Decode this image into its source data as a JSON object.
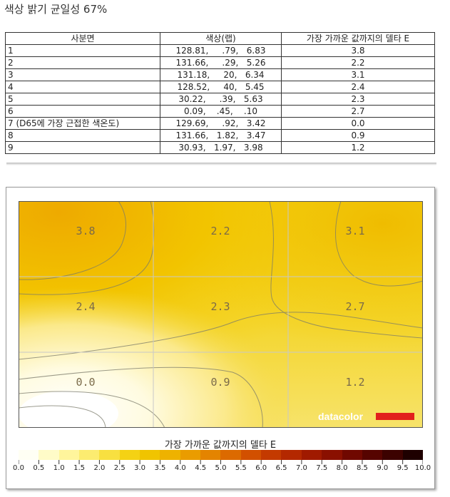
{
  "page_title": "색상 밝기 균일성 67%",
  "table": {
    "headers": [
      "사분면",
      "색상(랩)",
      "가장 가까운 값까지의 델타 E"
    ],
    "rows": [
      {
        "quadrant": "1",
        "lab": "128.81,     .79,   6.83",
        "delta": "3.8"
      },
      {
        "quadrant": "2",
        "lab": "131.66,     .29,   5.26",
        "delta": "2.2"
      },
      {
        "quadrant": "3",
        "lab": "131.18,     20,   6.34",
        "delta": "3.1"
      },
      {
        "quadrant": "4",
        "lab": "128.52,     40,   5.45",
        "delta": "2.4"
      },
      {
        "quadrant": "5",
        "lab": "30.22,     .39,   5.63",
        "delta": "2.3"
      },
      {
        "quadrant": "6",
        "lab": "0.09,    .45,    .10",
        "delta": "2.7"
      },
      {
        "quadrant": "7 (D65에 가장 근접한 색온도)",
        "lab": "129.69,     .92,   3.42",
        "delta": "0.0"
      },
      {
        "quadrant": "8",
        "lab": "131.66,   1.82,   3.47",
        "delta": "0.9"
      },
      {
        "quadrant": "9",
        "lab": "30.93,   1.97,   3.98",
        "delta": "1.2"
      }
    ]
  },
  "heatmap": {
    "cells": [
      "3.8",
      "2.2",
      "3.1",
      "2.4",
      "2.3",
      "2.7",
      "0.0",
      "0.9",
      "1.2"
    ],
    "watermark": "datacolor",
    "legend_title": "가장 가까운 값까지의 델타 E",
    "legend_ticks": [
      "0.0",
      "0.5",
      "1.0",
      "1.5",
      "2.0",
      "2.5",
      "3.0",
      "3.5",
      "4.0",
      "4.5",
      "5.0",
      "5.5",
      "6.0",
      "6.5",
      "7.0",
      "7.5",
      "8.0",
      "8.5",
      "9.0",
      "9.5",
      "10.0"
    ],
    "legend_colors": [
      "#fffff4",
      "#fffbc8",
      "#fff59c",
      "#fcec70",
      "#f8e040",
      "#f4d214",
      "#f0c400",
      "#eeb200",
      "#ea9c00",
      "#e48400",
      "#dc6a00",
      "#d25000",
      "#c43a00",
      "#b42800",
      "#a01a00",
      "#8a1000",
      "#700800",
      "#560400",
      "#3c0200",
      "#1e0000"
    ],
    "accent_color": "#e2201c"
  }
}
